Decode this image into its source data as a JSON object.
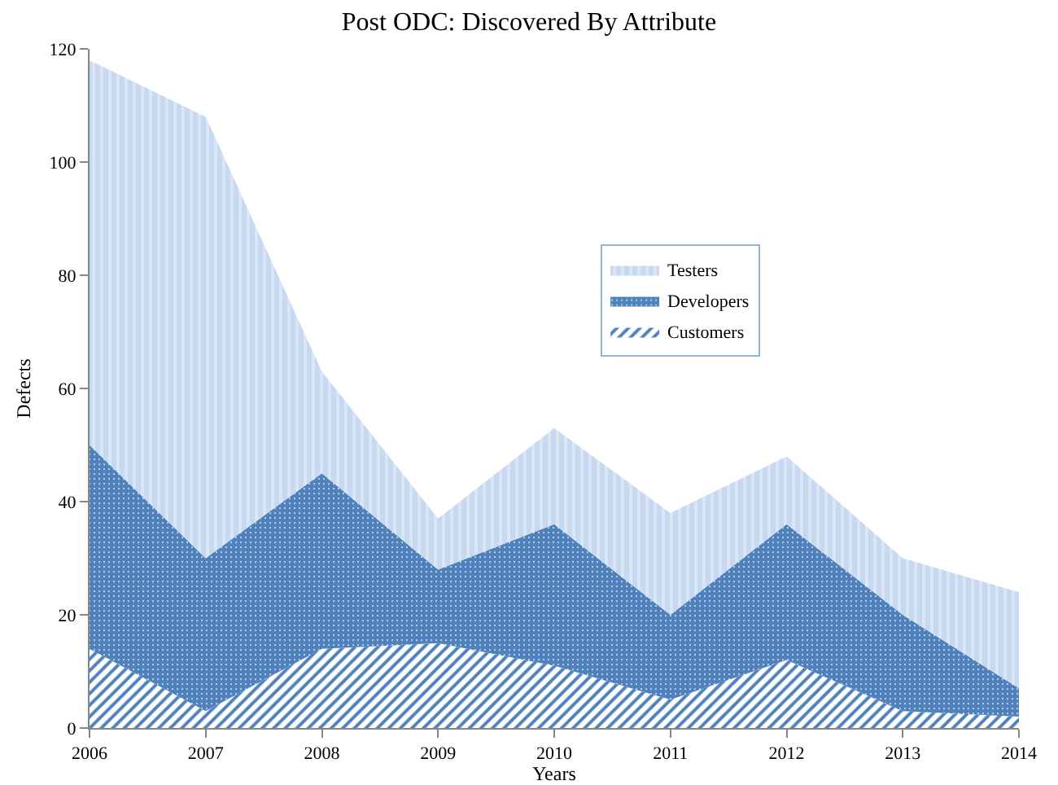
{
  "chart_data": {
    "type": "area",
    "stacked": true,
    "title": "Post ODC: Discovered By Attribute",
    "xlabel": "Years",
    "ylabel": "Defects",
    "x": [
      2006,
      2007,
      2008,
      2009,
      2010,
      2011,
      2012,
      2013,
      2014
    ],
    "series": [
      {
        "name": "Customers",
        "color": "#4f81bd",
        "values": [
          14,
          3,
          14,
          15,
          11,
          5,
          12,
          3,
          2
        ]
      },
      {
        "name": "Developers",
        "color": "#4f81bd",
        "values": [
          36,
          27,
          31,
          13,
          25,
          15,
          24,
          17,
          5
        ]
      },
      {
        "name": "Testers",
        "color": "#c6d9f0",
        "values": [
          68,
          78,
          18,
          9,
          17,
          18,
          12,
          10,
          17
        ]
      }
    ],
    "xlim": [
      2006,
      2014
    ],
    "xticks": [
      2006,
      2007,
      2008,
      2009,
      2010,
      2011,
      2012,
      2013,
      2014
    ],
    "ylim": [
      0,
      120
    ],
    "yticks": [
      0,
      20,
      40,
      60,
      80,
      100,
      120
    ],
    "grid": false,
    "legend": "center"
  }
}
